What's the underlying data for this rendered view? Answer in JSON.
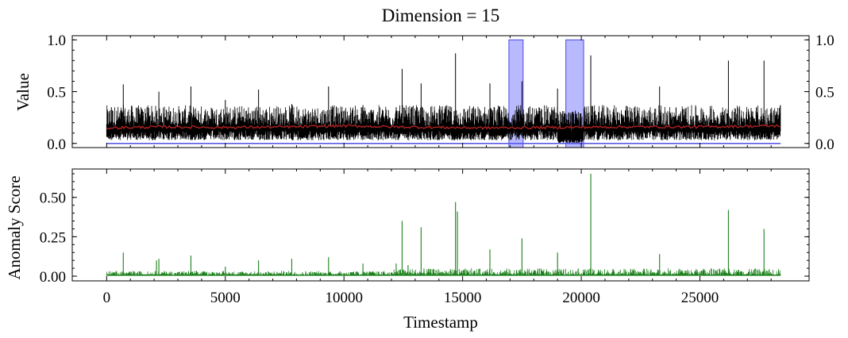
{
  "chart_data": [
    {
      "type": "line",
      "panel": "top",
      "title": "Dimension = 15",
      "xlabel": "",
      "ylabel": "Value",
      "xlim": [
        -1450,
        29600
      ],
      "ylim": [
        -0.04,
        1.04
      ],
      "yticks": [
        0.0,
        0.5,
        1.0
      ],
      "ytick_labels": [
        "0.0",
        "0.5",
        "1.0"
      ],
      "grid": false,
      "series": [
        {
          "role": "raw signal",
          "color": "#000000",
          "baseline": 0.15,
          "noise_band": [
            0.05,
            0.3
          ],
          "spikes": [
            {
              "x": 200,
              "y": 0.35
            },
            {
              "x": 700,
              "y": 0.57
            },
            {
              "x": 1700,
              "y": 0.35
            },
            {
              "x": 2200,
              "y": 0.5
            },
            {
              "x": 3550,
              "y": 0.55
            },
            {
              "x": 5000,
              "y": 0.42
            },
            {
              "x": 6400,
              "y": 0.52
            },
            {
              "x": 7800,
              "y": 0.38
            },
            {
              "x": 9350,
              "y": 0.55
            },
            {
              "x": 10800,
              "y": 0.37
            },
            {
              "x": 12200,
              "y": 0.35
            },
            {
              "x": 12450,
              "y": 0.72
            },
            {
              "x": 13250,
              "y": 0.58
            },
            {
              "x": 14700,
              "y": 0.87
            },
            {
              "x": 16150,
              "y": 0.58
            },
            {
              "x": 17500,
              "y": 0.6
            },
            {
              "x": 19000,
              "y": 0.53
            },
            {
              "x": 20400,
              "y": 0.85
            },
            {
              "x": 23300,
              "y": 0.55
            },
            {
              "x": 26200,
              "y": 0.8
            },
            {
              "x": 27700,
              "y": 0.8
            }
          ]
        },
        {
          "role": "smoothed signal",
          "color": "#b22222",
          "points": [
            [
              0,
              0.15
            ],
            [
              2200,
              0.16
            ],
            [
              5000,
              0.155
            ],
            [
              8000,
              0.16
            ],
            [
              10000,
              0.17
            ],
            [
              12000,
              0.16
            ],
            [
              14000,
              0.155
            ],
            [
              16000,
              0.15
            ],
            [
              19000,
              0.155
            ],
            [
              22000,
              0.16
            ],
            [
              25000,
              0.16
            ],
            [
              28400,
              0.17
            ]
          ]
        },
        {
          "role": "label baseline",
          "color": "#5a5ae6",
          "points": [
            [
              0,
              0.0
            ],
            [
              28400,
              0.0
            ]
          ]
        }
      ],
      "anomaly_regions": [
        {
          "x0": 16950,
          "x1": 17550,
          "y": 1.0,
          "color": "#8080ff"
        },
        {
          "x0": 19350,
          "x1": 20100,
          "y": 1.0,
          "color": "#8080ff"
        }
      ],
      "dense_regions": [
        {
          "x0": 19000,
          "x1": 20100
        }
      ]
    },
    {
      "type": "line",
      "panel": "bottom",
      "title": "",
      "xlabel": "Timestamp",
      "ylabel": "Anomaly Score",
      "xlim": [
        -1450,
        29600
      ],
      "ylim": [
        -0.03,
        0.68
      ],
      "xticks": [
        0,
        5000,
        10000,
        15000,
        20000,
        25000
      ],
      "xtick_labels": [
        "0",
        "5000",
        "10000",
        "15000",
        "20000",
        "25000"
      ],
      "yticks": [
        0.0,
        0.25,
        0.5
      ],
      "ytick_labels": [
        "0.00",
        "0.25",
        "0.50"
      ],
      "grid": false,
      "series": [
        {
          "role": "anomaly score",
          "color": "#1a801a",
          "baseline": 0.005,
          "spikes": [
            {
              "x": 700,
              "y": 0.15
            },
            {
              "x": 2100,
              "y": 0.1
            },
            {
              "x": 2200,
              "y": 0.11
            },
            {
              "x": 3550,
              "y": 0.13
            },
            {
              "x": 5000,
              "y": 0.06
            },
            {
              "x": 6400,
              "y": 0.1
            },
            {
              "x": 7800,
              "y": 0.11
            },
            {
              "x": 9350,
              "y": 0.12
            },
            {
              "x": 10800,
              "y": 0.08
            },
            {
              "x": 12200,
              "y": 0.08
            },
            {
              "x": 12450,
              "y": 0.35
            },
            {
              "x": 12700,
              "y": 0.07
            },
            {
              "x": 13250,
              "y": 0.31
            },
            {
              "x": 14700,
              "y": 0.47
            },
            {
              "x": 14780,
              "y": 0.41
            },
            {
              "x": 16150,
              "y": 0.17
            },
            {
              "x": 17500,
              "y": 0.24
            },
            {
              "x": 19000,
              "y": 0.15
            },
            {
              "x": 20400,
              "y": 0.65
            },
            {
              "x": 23300,
              "y": 0.14
            },
            {
              "x": 26200,
              "y": 0.42
            },
            {
              "x": 27700,
              "y": 0.3
            }
          ]
        }
      ]
    }
  ]
}
